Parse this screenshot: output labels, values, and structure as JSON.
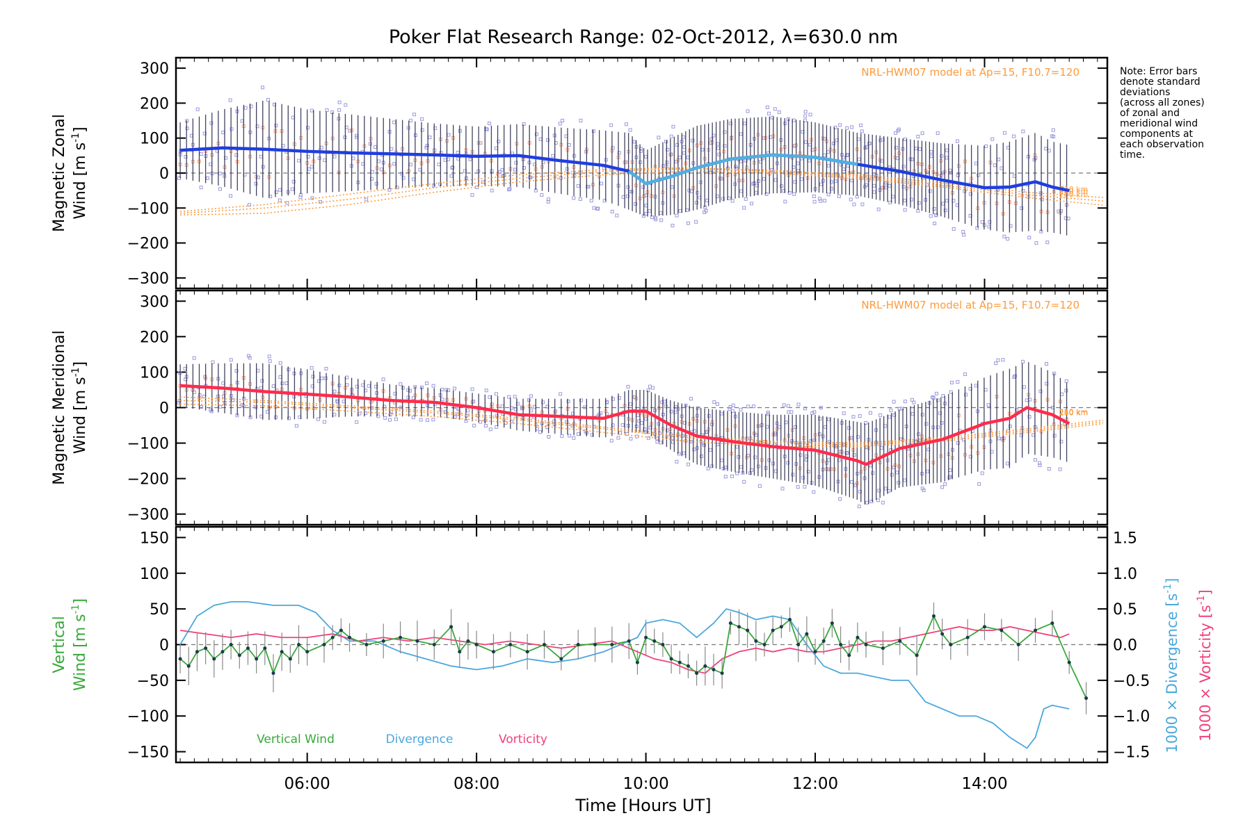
{
  "title": "Poker Flat Research Range: 02-Oct-2012, λ=630.0 nm",
  "note_lines": [
    "Note: Error bars",
    "denote standard",
    "deviations",
    "(across all zones)",
    "of zonal and",
    "meridional wind",
    "components at",
    "each observation",
    "time."
  ],
  "colors": {
    "zonal": "#1f3ee0",
    "zonal_light": "#4fb0e0",
    "meridional": "#ff2b4b",
    "vertical": "#38a83a",
    "divergence": "#4aa7dd",
    "vorticity": "#f0407a",
    "model": "#ff9a3a",
    "zone_points": "#9a98dc",
    "error_bar": "#222244"
  },
  "xaxis": {
    "label": "Time [Hours UT]",
    "ticks": [
      "06:00",
      "08:00",
      "10:00",
      "12:00",
      "14:00"
    ],
    "tick_values": [
      6,
      8,
      10,
      12,
      14
    ],
    "range": [
      4.45,
      15.45
    ]
  },
  "chart_data": [
    {
      "type": "line",
      "ylabel_line1": "Magnetic Zonal",
      "ylabel_line2": "Wind [m s",
      "ylabel_sup": "-1",
      "ylabel_end": "]",
      "ylim": [
        -330,
        330
      ],
      "yticks": [
        300,
        200,
        100,
        0,
        -100,
        -200,
        -300
      ],
      "yticklabels": [
        "300",
        "200",
        "100",
        "0",
        "−100",
        "−200",
        "−300"
      ],
      "model_label": "NRL-HWM07 model at Ap=15, F10.7=120",
      "model_heights": [
        "250 km",
        "240 km",
        "210 km"
      ],
      "series": [
        {
          "x": [
            4.5,
            5.0,
            5.5,
            6.0,
            6.5,
            7.0,
            7.5,
            8.0,
            8.5,
            9.0,
            9.5,
            9.8,
            10.0,
            10.3,
            10.6,
            11.0,
            11.5,
            12.0,
            12.5,
            13.0,
            13.5,
            14.0,
            14.3,
            14.6,
            14.8,
            15.0
          ],
          "y": [
            65,
            72,
            68,
            62,
            58,
            55,
            52,
            48,
            50,
            35,
            22,
            5,
            -30,
            -10,
            15,
            40,
            52,
            45,
            25,
            5,
            -20,
            -42,
            -40,
            -25,
            -40,
            -50
          ]
        }
      ],
      "model_x": [
        4.5,
        5.5,
        6.5,
        7.5,
        8.5,
        9.5,
        10.5,
        11.5,
        12.5,
        13.5,
        14.5,
        15.4
      ],
      "model_curves": [
        [
          -120,
          -115,
          -90,
          -55,
          -25,
          -5,
          5,
          0,
          -15,
          -40,
          -70,
          -92
        ],
        [
          -115,
          -100,
          -75,
          -42,
          -15,
          5,
          12,
          5,
          -10,
          -35,
          -62,
          -80
        ],
        [
          -110,
          -90,
          -60,
          -30,
          -5,
          10,
          15,
          8,
          -5,
          -28,
          -55,
          -70
        ]
      ],
      "error_bar_std": [
        80,
        110,
        140,
        120,
        110,
        100,
        90,
        85,
        90,
        95,
        100,
        110,
        95,
        110,
        120,
        115,
        110,
        100,
        90,
        95,
        105,
        120,
        130,
        140,
        130,
        130
      ]
    },
    {
      "type": "line",
      "ylabel_line1": "Magnetic Meridional",
      "ylabel_line2": "Wind [m s",
      "ylabel_sup": "-1",
      "ylabel_end": "]",
      "ylim": [
        -330,
        330
      ],
      "yticks": [
        300,
        200,
        100,
        0,
        -100,
        -200,
        -300
      ],
      "yticklabels": [
        "300",
        "200",
        "100",
        "0",
        "−100",
        "−200",
        "−300"
      ],
      "model_label": "NRL-HWM07 model at Ap=15, F10.7=120",
      "model_heights": [
        "250 km",
        "240 km",
        "210 km"
      ],
      "series": [
        {
          "x": [
            4.5,
            5.0,
            5.5,
            6.0,
            6.5,
            7.0,
            7.5,
            8.0,
            8.5,
            9.0,
            9.5,
            9.8,
            10.0,
            10.3,
            10.6,
            11.0,
            11.5,
            12.0,
            12.5,
            12.6,
            13.0,
            13.5,
            14.0,
            14.3,
            14.5,
            14.8,
            15.0
          ],
          "y": [
            62,
            55,
            45,
            38,
            30,
            20,
            15,
            0,
            -20,
            -25,
            -30,
            -10,
            -10,
            -50,
            -80,
            -95,
            -110,
            -120,
            -150,
            -160,
            -115,
            -90,
            -45,
            -30,
            0,
            -20,
            -45
          ]
        }
      ],
      "model_x": [
        4.5,
        5.5,
        6.5,
        7.5,
        8.5,
        9.5,
        10.5,
        11.5,
        12.5,
        13.5,
        14.5,
        15.4
      ],
      "model_curves": [
        [
          10,
          5,
          -10,
          -25,
          -45,
          -70,
          -95,
          -110,
          -110,
          -95,
          -70,
          -45
        ],
        [
          20,
          15,
          0,
          -15,
          -35,
          -60,
          -85,
          -100,
          -105,
          -90,
          -65,
          -40
        ],
        [
          30,
          20,
          5,
          -10,
          -30,
          -55,
          -80,
          -95,
          -100,
          -85,
          -60,
          -35
        ]
      ],
      "error_bar_std": [
        60,
        70,
        80,
        70,
        55,
        45,
        40,
        40,
        45,
        50,
        55,
        60,
        60,
        70,
        80,
        85,
        90,
        100,
        110,
        115,
        110,
        120,
        130,
        140,
        130,
        120,
        110
      ]
    },
    {
      "type": "line",
      "ylabel_line1": "Vertical",
      "ylabel_line2": "Wind [m s",
      "ylabel_sup": "-1",
      "ylabel_end": "]",
      "ylim": [
        -165,
        165
      ],
      "yticks": [
        150,
        100,
        50,
        0,
        -50,
        -100,
        -150
      ],
      "yticklabels": [
        "150",
        "100",
        "50",
        "0",
        "−50",
        "−100",
        "−150"
      ],
      "y2label_div": "1000 × Divergence [s",
      "y2label_vor": "1000 × Vorticity [s",
      "y2_sup": "-1",
      "y2_end": "]",
      "y2lim": [
        -1.65,
        1.65
      ],
      "y2ticks": [
        1.5,
        1.0,
        0.5,
        0.0,
        -0.5,
        -1.0,
        -1.5
      ],
      "y2ticklabels": [
        "1.5",
        "1.0",
        "0.5",
        "0.0",
        "−0.5",
        "−1.0",
        "−1.5"
      ],
      "legend": [
        "Vertical Wind",
        "Divergence",
        "Vorticity"
      ],
      "series": [
        {
          "name": "Vertical Wind",
          "x": [
            4.5,
            4.6,
            4.7,
            4.8,
            4.9,
            5.0,
            5.1,
            5.2,
            5.3,
            5.4,
            5.5,
            5.6,
            5.7,
            5.8,
            5.9,
            6.0,
            6.2,
            6.3,
            6.4,
            6.5,
            6.7,
            6.9,
            7.1,
            7.3,
            7.5,
            7.7,
            7.8,
            7.9,
            8.0,
            8.2,
            8.4,
            8.6,
            8.8,
            9.0,
            9.2,
            9.4,
            9.6,
            9.8,
            9.9,
            10.0,
            10.1,
            10.2,
            10.3,
            10.4,
            10.5,
            10.6,
            10.7,
            10.8,
            10.9,
            11.0,
            11.1,
            11.2,
            11.3,
            11.4,
            11.5,
            11.6,
            11.7,
            11.8,
            11.9,
            12.0,
            12.1,
            12.2,
            12.3,
            12.4,
            12.5,
            12.6,
            12.8,
            13.0,
            13.2,
            13.4,
            13.5,
            13.6,
            13.8,
            14.0,
            14.2,
            14.4,
            14.6,
            14.8,
            15.0,
            15.2
          ],
          "y": [
            -20,
            -30,
            -10,
            -5,
            -20,
            -10,
            0,
            -15,
            -5,
            -20,
            -5,
            -40,
            -10,
            -20,
            0,
            -10,
            0,
            10,
            20,
            10,
            0,
            5,
            10,
            5,
            0,
            25,
            -10,
            5,
            0,
            -10,
            0,
            -10,
            0,
            -20,
            0,
            0,
            0,
            5,
            -25,
            10,
            5,
            0,
            -20,
            -25,
            -30,
            -40,
            -30,
            -35,
            -40,
            30,
            25,
            20,
            5,
            0,
            20,
            25,
            35,
            0,
            15,
            -10,
            5,
            30,
            0,
            -15,
            10,
            0,
            -5,
            5,
            -15,
            40,
            15,
            0,
            10,
            25,
            20,
            0,
            20,
            30,
            -25,
            -75
          ]
        },
        {
          "name": "Divergence",
          "axis": "right",
          "x": [
            4.5,
            4.7,
            4.9,
            5.1,
            5.3,
            5.6,
            5.9,
            6.1,
            6.3,
            6.5,
            6.8,
            7.1,
            7.4,
            7.7,
            8.0,
            8.3,
            8.6,
            8.9,
            9.2,
            9.5,
            9.7,
            9.9,
            10.0,
            10.2,
            10.4,
            10.6,
            10.8,
            10.95,
            11.1,
            11.3,
            11.5,
            11.7,
            11.9,
            12.1,
            12.3,
            12.5,
            12.7,
            12.9,
            13.1,
            13.3,
            13.5,
            13.7,
            13.9,
            14.1,
            14.3,
            14.5,
            14.6,
            14.7,
            14.8,
            15.0
          ],
          "y": [
            0.0,
            0.4,
            0.55,
            0.6,
            0.6,
            0.55,
            0.55,
            0.45,
            0.2,
            0.05,
            0.05,
            -0.1,
            -0.2,
            -0.3,
            -0.35,
            -0.3,
            -0.2,
            -0.25,
            -0.2,
            -0.1,
            0.0,
            0.1,
            0.3,
            0.35,
            0.3,
            0.1,
            0.3,
            0.5,
            0.45,
            0.35,
            0.4,
            0.35,
            0.0,
            -0.3,
            -0.4,
            -0.4,
            -0.45,
            -0.5,
            -0.5,
            -0.8,
            -0.9,
            -1.0,
            -1.0,
            -1.1,
            -1.3,
            -1.45,
            -1.3,
            -0.9,
            -0.85,
            -0.9
          ]
        },
        {
          "name": "Vorticity",
          "axis": "right",
          "x": [
            4.5,
            4.8,
            5.1,
            5.4,
            5.7,
            6.0,
            6.3,
            6.6,
            6.9,
            7.2,
            7.5,
            7.8,
            8.1,
            8.4,
            8.7,
            9.0,
            9.3,
            9.6,
            9.9,
            10.1,
            10.3,
            10.5,
            10.7,
            10.9,
            11.1,
            11.3,
            11.5,
            11.7,
            11.9,
            12.1,
            12.3,
            12.5,
            12.7,
            12.9,
            13.1,
            13.3,
            13.5,
            13.7,
            13.9,
            14.1,
            14.3,
            14.5,
            14.7,
            14.9,
            15.0
          ],
          "y": [
            0.2,
            0.15,
            0.1,
            0.15,
            0.1,
            0.1,
            0.15,
            0.05,
            0.1,
            0.05,
            0.1,
            0.05,
            0.0,
            0.05,
            0.0,
            -0.05,
            0.0,
            0.05,
            -0.1,
            -0.2,
            -0.25,
            -0.35,
            -0.4,
            -0.2,
            -0.1,
            -0.05,
            -0.1,
            -0.05,
            -0.1,
            -0.1,
            -0.05,
            0.0,
            0.05,
            0.05,
            0.1,
            0.15,
            0.2,
            0.25,
            0.2,
            0.2,
            0.25,
            0.2,
            0.15,
            0.1,
            0.15
          ]
        }
      ],
      "error_bar_std": 22
    }
  ]
}
